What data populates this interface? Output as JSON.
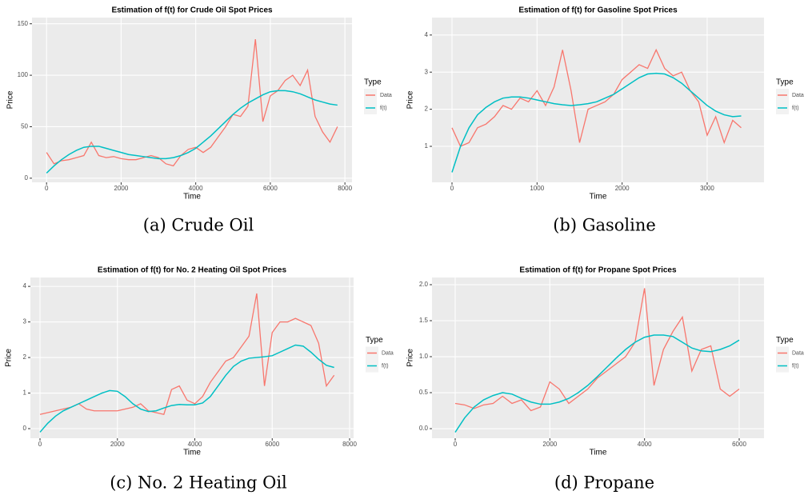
{
  "chart_data": [
    {
      "type": "line",
      "title": "Estimation of f(t) for Crude Oil Spot Prices",
      "xlabel": "Time",
      "ylabel": "Price",
      "caption": "(a) Crude Oil",
      "legend_title": "Type",
      "grid": true,
      "xlim": [
        -390,
        8190
      ],
      "ylim": [
        -4,
        156
      ],
      "xticks": [
        0,
        2000,
        4000,
        6000,
        8000
      ],
      "yticks": [
        0,
        50,
        100,
        150
      ],
      "x": [
        0,
        200,
        400,
        600,
        800,
        1000,
        1200,
        1400,
        1600,
        1800,
        2000,
        2200,
        2400,
        2600,
        2800,
        3000,
        3200,
        3400,
        3600,
        3800,
        4000,
        4200,
        4400,
        4600,
        4800,
        5000,
        5200,
        5400,
        5600,
        5800,
        6000,
        6200,
        6400,
        6600,
        6800,
        7000,
        7200,
        7400,
        7600,
        7800
      ],
      "series": [
        {
          "name": "Data",
          "color": "#F8766D",
          "values": [
            25,
            14,
            17,
            18,
            20,
            22,
            35,
            22,
            20,
            21,
            19,
            18,
            18,
            20,
            22,
            20,
            14,
            12,
            22,
            28,
            30,
            25,
            30,
            40,
            50,
            62,
            60,
            70,
            135,
            55,
            80,
            85,
            95,
            100,
            90,
            105,
            60,
            45,
            35,
            50
          ]
        },
        {
          "name": "f(t)",
          "color": "#00BFC4",
          "values": [
            5,
            12,
            18,
            23,
            27,
            30,
            31,
            31,
            29,
            27,
            25,
            23,
            22,
            21,
            20,
            19,
            19,
            20,
            22,
            25,
            29,
            35,
            41,
            48,
            55,
            62,
            68,
            73,
            77,
            81,
            84,
            85,
            85,
            84,
            82,
            79,
            76,
            74,
            72,
            71
          ]
        }
      ]
    },
    {
      "type": "line",
      "title": "Estimation of f(t) for Gasoline Spot Prices",
      "xlabel": "Time",
      "ylabel": "Price",
      "caption": "(b) Gasoline",
      "legend_title": "Type",
      "grid": true,
      "xlim": [
        -235,
        3668
      ],
      "ylim": [
        0.03,
        4.47
      ],
      "xticks": [
        0,
        1000,
        2000,
        3000
      ],
      "yticks": [
        1,
        2,
        3,
        4
      ],
      "x": [
        0,
        100,
        200,
        300,
        400,
        500,
        600,
        700,
        800,
        900,
        1000,
        1100,
        1200,
        1300,
        1400,
        1500,
        1600,
        1700,
        1800,
        1900,
        2000,
        2100,
        2200,
        2300,
        2400,
        2500,
        2600,
        2700,
        2800,
        2900,
        3000,
        3100,
        3200,
        3300,
        3400
      ],
      "series": [
        {
          "name": "Data",
          "color": "#F8766D",
          "values": [
            1.5,
            1.0,
            1.1,
            1.5,
            1.6,
            1.8,
            2.1,
            2.0,
            2.3,
            2.2,
            2.5,
            2.1,
            2.6,
            3.6,
            2.5,
            1.1,
            2.0,
            2.1,
            2.2,
            2.4,
            2.8,
            3.0,
            3.2,
            3.1,
            3.6,
            3.1,
            2.9,
            3.0,
            2.5,
            2.2,
            1.3,
            1.8,
            1.1,
            1.7,
            1.5
          ]
        },
        {
          "name": "f(t)",
          "color": "#00BFC4",
          "values": [
            0.3,
            1.0,
            1.5,
            1.85,
            2.05,
            2.2,
            2.3,
            2.33,
            2.33,
            2.3,
            2.25,
            2.2,
            2.15,
            2.12,
            2.1,
            2.12,
            2.15,
            2.2,
            2.3,
            2.4,
            2.55,
            2.7,
            2.85,
            2.95,
            2.97,
            2.95,
            2.85,
            2.7,
            2.5,
            2.3,
            2.1,
            1.95,
            1.85,
            1.8,
            1.82
          ]
        }
      ]
    },
    {
      "type": "line",
      "title": "Estimation of f(t) for No. 2 Heating Oil Spot Prices",
      "xlabel": "Time",
      "ylabel": "Price",
      "caption": "(c) No. 2 Heating Oil",
      "legend_title": "Type",
      "grid": true,
      "xlim": [
        -248,
        8103
      ],
      "ylim": [
        -0.27,
        4.25
      ],
      "xticks": [
        0,
        2000,
        4000,
        6000,
        8000
      ],
      "yticks": [
        0,
        1,
        2,
        3,
        4
      ],
      "x": [
        0,
        200,
        400,
        600,
        800,
        1000,
        1200,
        1400,
        1600,
        1800,
        2000,
        2200,
        2400,
        2600,
        2800,
        3000,
        3200,
        3400,
        3600,
        3800,
        4000,
        4200,
        4400,
        4600,
        4800,
        5000,
        5200,
        5400,
        5600,
        5800,
        6000,
        6200,
        6400,
        6600,
        6800,
        7000,
        7200,
        7400,
        7600
      ],
      "series": [
        {
          "name": "Data",
          "color": "#F8766D",
          "values": [
            0.4,
            0.45,
            0.5,
            0.55,
            0.6,
            0.7,
            0.55,
            0.5,
            0.5,
            0.5,
            0.5,
            0.55,
            0.6,
            0.7,
            0.5,
            0.45,
            0.4,
            1.1,
            1.2,
            0.8,
            0.7,
            0.9,
            1.3,
            1.6,
            1.9,
            2.0,
            2.3,
            2.6,
            3.8,
            1.2,
            2.7,
            3.0,
            3.0,
            3.1,
            3.0,
            2.9,
            2.4,
            1.2,
            1.5
          ]
        },
        {
          "name": "f(t)",
          "color": "#00BFC4",
          "values": [
            -0.1,
            0.15,
            0.35,
            0.5,
            0.6,
            0.7,
            0.8,
            0.9,
            1.0,
            1.07,
            1.05,
            0.9,
            0.7,
            0.55,
            0.48,
            0.5,
            0.58,
            0.65,
            0.68,
            0.67,
            0.67,
            0.72,
            0.9,
            1.2,
            1.5,
            1.75,
            1.9,
            1.98,
            2.0,
            2.02,
            2.05,
            2.15,
            2.25,
            2.35,
            2.32,
            2.15,
            1.95,
            1.78,
            1.72
          ]
        }
      ]
    },
    {
      "type": "line",
      "title": "Estimation of f(t) for Propane Spot Prices",
      "xlabel": "Time",
      "ylabel": "Price",
      "caption": "(d) Propane",
      "legend_title": "Type",
      "grid": true,
      "xlim": [
        -490,
        6524
      ],
      "ylim": [
        -0.133,
        2.1
      ],
      "xticks": [
        0,
        2000,
        4000,
        6000
      ],
      "yticks": [
        {
          "value": 0,
          "label": "0.0"
        },
        {
          "value": 0.5,
          "label": "0.5"
        },
        {
          "value": 1,
          "label": "1.0"
        },
        {
          "value": 1.5,
          "label": "1.5"
        },
        {
          "value": 2,
          "label": "2.0"
        }
      ],
      "x": [
        0,
        200,
        400,
        600,
        800,
        1000,
        1200,
        1400,
        1600,
        1800,
        2000,
        2200,
        2400,
        2600,
        2800,
        3000,
        3200,
        3400,
        3600,
        3800,
        4000,
        4200,
        4400,
        4600,
        4800,
        5000,
        5200,
        5400,
        5600,
        5800,
        6000
      ],
      "series": [
        {
          "name": "Data",
          "color": "#F8766D",
          "values": [
            0.35,
            0.33,
            0.28,
            0.33,
            0.35,
            0.45,
            0.35,
            0.4,
            0.25,
            0.3,
            0.65,
            0.55,
            0.35,
            0.45,
            0.55,
            0.7,
            0.8,
            0.9,
            1.0,
            1.2,
            1.95,
            0.6,
            1.1,
            1.35,
            1.55,
            0.8,
            1.1,
            1.15,
            0.55,
            0.45,
            0.55
          ]
        },
        {
          "name": "f(t)",
          "color": "#00BFC4",
          "values": [
            -0.05,
            0.15,
            0.3,
            0.4,
            0.46,
            0.5,
            0.48,
            0.42,
            0.37,
            0.34,
            0.34,
            0.37,
            0.42,
            0.5,
            0.6,
            0.72,
            0.85,
            0.98,
            1.1,
            1.2,
            1.27,
            1.3,
            1.3,
            1.28,
            1.2,
            1.12,
            1.08,
            1.07,
            1.1,
            1.15,
            1.23
          ]
        }
      ]
    }
  ]
}
